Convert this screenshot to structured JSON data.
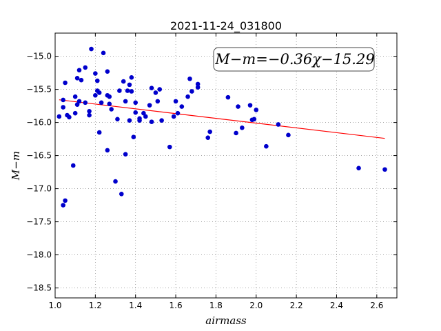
{
  "chart_data": {
    "type": "scatter",
    "title": "2021-11-24_031800",
    "xlabel": "airmass",
    "ylabel": "M−m",
    "xlim": [
      1.0,
      2.7
    ],
    "ylim": [
      -18.65,
      -14.65
    ],
    "y_inverted": true,
    "grid": true,
    "x_ticks": [
      "1.0",
      "1.2",
      "1.4",
      "1.6",
      "1.8",
      "2.0",
      "2.2",
      "2.4",
      "2.6"
    ],
    "y_ticks": [
      "−15.0",
      "−15.5",
      "−16.0",
      "−16.5",
      "−17.0",
      "−17.5",
      "−18.0",
      "−18.5"
    ],
    "annotation": "M−m=−0.36χ−15.29",
    "colors": {
      "points": "#0000cc",
      "fit": "#ff0000",
      "grid": "#888888"
    },
    "fit": {
      "slope": -0.36,
      "intercept": -15.29,
      "x_range": [
        1.02,
        2.64
      ]
    },
    "series": [
      {
        "points": [
          [
            1.02,
            -15.91
          ],
          [
            1.04,
            -15.66
          ],
          [
            1.04,
            -15.77
          ],
          [
            1.04,
            -17.25
          ],
          [
            1.05,
            -17.18
          ],
          [
            1.05,
            -15.4
          ],
          [
            1.06,
            -15.89
          ],
          [
            1.07,
            -15.92
          ],
          [
            1.09,
            -16.65
          ],
          [
            1.1,
            -15.86
          ],
          [
            1.1,
            -15.61
          ],
          [
            1.11,
            -15.33
          ],
          [
            1.11,
            -15.73
          ],
          [
            1.12,
            -15.68
          ],
          [
            1.12,
            -15.21
          ],
          [
            1.13,
            -15.36
          ],
          [
            1.15,
            -15.7
          ],
          [
            1.15,
            -15.17
          ],
          [
            1.17,
            -15.83
          ],
          [
            1.17,
            -15.89
          ],
          [
            1.18,
            -14.89
          ],
          [
            1.2,
            -15.59
          ],
          [
            1.2,
            -15.26
          ],
          [
            1.21,
            -15.37
          ],
          [
            1.21,
            -15.52
          ],
          [
            1.22,
            -16.15
          ],
          [
            1.22,
            -15.55
          ],
          [
            1.23,
            -15.7
          ],
          [
            1.24,
            -14.95
          ],
          [
            1.26,
            -16.42
          ],
          [
            1.26,
            -15.59
          ],
          [
            1.26,
            -15.23
          ],
          [
            1.27,
            -15.61
          ],
          [
            1.27,
            -15.72
          ],
          [
            1.28,
            -15.8
          ],
          [
            1.3,
            -16.89
          ],
          [
            1.31,
            -15.95
          ],
          [
            1.32,
            -15.52
          ],
          [
            1.33,
            -17.08
          ],
          [
            1.34,
            -15.38
          ],
          [
            1.35,
            -16.48
          ],
          [
            1.35,
            -15.68
          ],
          [
            1.36,
            -15.52
          ],
          [
            1.37,
            -15.43
          ],
          [
            1.37,
            -15.97
          ],
          [
            1.38,
            -15.53
          ],
          [
            1.38,
            -15.32
          ],
          [
            1.39,
            -16.22
          ],
          [
            1.4,
            -15.7
          ],
          [
            1.4,
            -15.85
          ],
          [
            1.42,
            -15.94
          ],
          [
            1.42,
            -15.97
          ],
          [
            1.44,
            -15.86
          ],
          [
            1.45,
            -15.91
          ],
          [
            1.47,
            -15.74
          ],
          [
            1.48,
            -15.48
          ],
          [
            1.48,
            -15.99
          ],
          [
            1.5,
            -15.55
          ],
          [
            1.51,
            -15.68
          ],
          [
            1.52,
            -15.5
          ],
          [
            1.53,
            -15.97
          ],
          [
            1.57,
            -16.37
          ],
          [
            1.59,
            -15.91
          ],
          [
            1.6,
            -15.68
          ],
          [
            1.61,
            -15.86
          ],
          [
            1.63,
            -15.76
          ],
          [
            1.66,
            -15.61
          ],
          [
            1.67,
            -15.34
          ],
          [
            1.68,
            -15.53
          ],
          [
            1.71,
            -15.47
          ],
          [
            1.71,
            -15.42
          ],
          [
            1.76,
            -16.23
          ],
          [
            1.77,
            -16.14
          ],
          [
            1.86,
            -15.62
          ],
          [
            1.9,
            -16.16
          ],
          [
            1.91,
            -15.76
          ],
          [
            1.93,
            -16.08
          ],
          [
            1.97,
            -15.74
          ],
          [
            1.98,
            -15.96
          ],
          [
            1.99,
            -15.95
          ],
          [
            2.0,
            -15.81
          ],
          [
            2.05,
            -16.36
          ],
          [
            2.11,
            -16.03
          ],
          [
            2.16,
            -16.19
          ],
          [
            2.51,
            -16.69
          ],
          [
            2.64,
            -16.71
          ]
        ]
      }
    ]
  }
}
